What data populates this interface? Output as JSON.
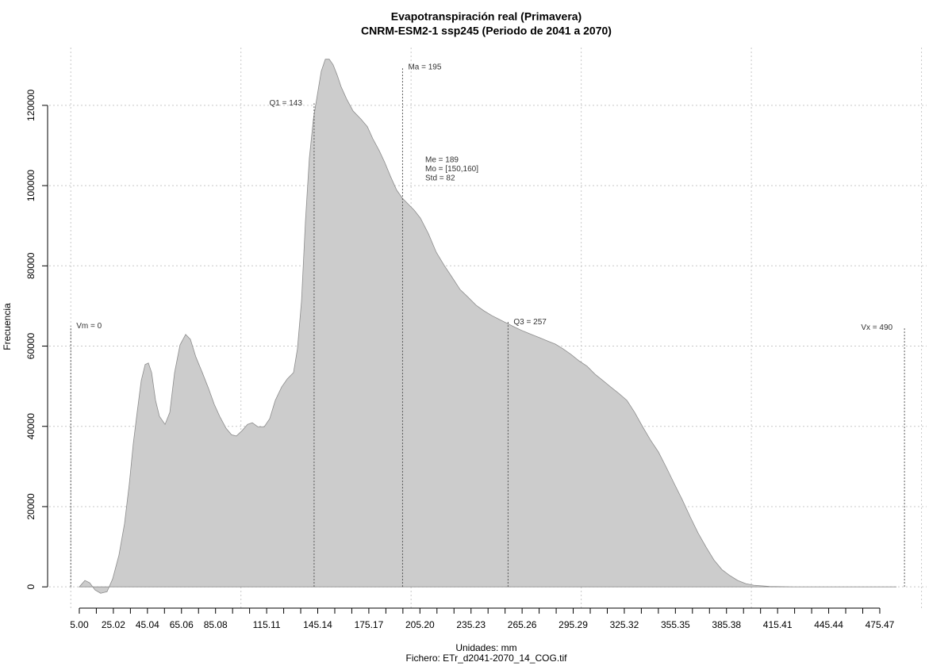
{
  "chart_data": {
    "type": "area",
    "title": "Evapotranspiración real (Primavera)",
    "subtitle": "CNRM-ESM2-1 ssp245 (Periodo de 2041 a 2070)",
    "xlabel": "Unidades: mm",
    "caption": "Fichero: ETr_d2041-2070_14_COG.tif",
    "ylabel": "Frecuencia",
    "color": "#cccccc",
    "line_color": "#8c8c8c",
    "grid": true,
    "xlim": [
      -12.7,
      503
    ],
    "ylim": [
      -5300,
      134400
    ],
    "xticks": [
      {
        "value": 5,
        "label": "5.00"
      },
      25.02,
      45.04,
      65.06,
      85.08,
      115.11,
      145.14,
      175.17,
      {
        "value": 205.2,
        "label": "205.20"
      },
      235.23,
      265.26,
      295.29,
      325.32,
      355.35,
      385.38,
      415.41,
      445.44,
      475.47
    ],
    "xticks_minor": [
      15.01,
      35.03,
      55.05,
      75.07,
      95.09,
      105.1,
      125.12,
      135.13,
      155.15,
      165.16,
      185.18,
      195.19,
      215.21,
      225.22,
      245.24,
      255.25,
      275.27,
      285.28,
      305.3,
      315.31,
      335.33,
      345.34,
      365.36,
      375.37,
      395.39,
      405.4,
      425.42,
      435.43,
      455.45,
      465.46
    ],
    "xgrid": [
      0,
      100,
      200,
      300,
      400,
      500
    ],
    "yticks": [
      0,
      20000,
      40000,
      60000,
      80000,
      100000,
      120000
    ],
    "x": [
      5,
      8.3,
      11.1,
      14.3,
      17.6,
      21.3,
      24.6,
      28.3,
      31.6,
      34.4,
      36.7,
      39.0,
      41.4,
      43.7,
      45.6,
      47.5,
      49.8,
      52.1,
      55.4,
      58.2,
      61.0,
      64.2,
      67.5,
      70.3,
      73.5,
      77.3,
      81.0,
      84.3,
      87.5,
      91.3,
      94.5,
      97.3,
      100.6,
      103.9,
      106.7,
      109.9,
      113.7,
      116.9,
      120.2,
      123.9,
      127.2,
      130.9,
      133.2,
      135.6,
      137.9,
      140.2,
      142.6,
      144.9,
      147.2,
      149.6,
      151.9,
      154.2,
      156.6,
      158.9,
      162.1,
      165.9,
      170.5,
      174.3,
      177.5,
      181.3,
      184.5,
      187.8,
      191.5,
      194.8,
      198.5,
      201.8,
      205.5,
      210.2,
      214.8,
      219.5,
      224.2,
      228.8,
      233.5,
      238.2,
      242.8,
      247.5,
      252.1,
      256.8,
      261.5,
      266.1,
      270.8,
      275.5,
      280.1,
      284.8,
      289.4,
      294.1,
      298.8,
      303.4,
      308.1,
      312.8,
      317.4,
      322.1,
      326.8,
      331.4,
      336.1,
      340.7,
      345.4,
      350.1,
      354.7,
      359.4,
      364.1,
      368.7,
      373.4,
      378.0,
      382.7,
      387.4,
      392.0,
      396.7,
      401.4,
      410.7,
      424.7,
      485.3
    ],
    "values": [
      0,
      1600,
      1000,
      -800,
      -1600,
      -1200,
      2000,
      7900,
      15800,
      25700,
      35600,
      43500,
      51400,
      55400,
      55800,
      53400,
      46500,
      42500,
      40500,
      43500,
      53400,
      60300,
      62900,
      61700,
      57300,
      53400,
      49400,
      45500,
      42500,
      39500,
      37900,
      37600,
      38900,
      40500,
      40900,
      39900,
      39900,
      41900,
      46500,
      49800,
      51800,
      53400,
      59300,
      71200,
      91000,
      106800,
      116600,
      122600,
      128500,
      131500,
      131500,
      130100,
      127500,
      124600,
      121600,
      118600,
      116600,
      114700,
      111700,
      108700,
      105800,
      102400,
      98900,
      96900,
      95300,
      93900,
      91900,
      88000,
      83400,
      80100,
      77100,
      74100,
      72200,
      70200,
      68800,
      67600,
      66600,
      65600,
      64600,
      63700,
      62900,
      62100,
      61300,
      60500,
      59300,
      57900,
      56300,
      55000,
      53000,
      51400,
      49800,
      48200,
      46500,
      43500,
      39900,
      36600,
      33600,
      29700,
      25700,
      21700,
      17400,
      13400,
      9900,
      6700,
      4300,
      2800,
      1600,
      800,
      400,
      100,
      0,
      0
    ],
    "annotations": [
      {
        "label": "Vm = 0",
        "x": 0,
        "y": 65000
      },
      {
        "label": "Q1 = 143",
        "x": 143,
        "y": 120500
      },
      {
        "label": "Ma = 195",
        "x": 195,
        "y": 129500
      },
      {
        "label": "Q3 = 257",
        "x": 257,
        "y": 66000
      },
      {
        "label": "Vx = 490",
        "x": 490,
        "y": 64600
      }
    ],
    "stats": [
      "Me = 189",
      "Mo = [150,160]",
      "Std = 82"
    ]
  }
}
